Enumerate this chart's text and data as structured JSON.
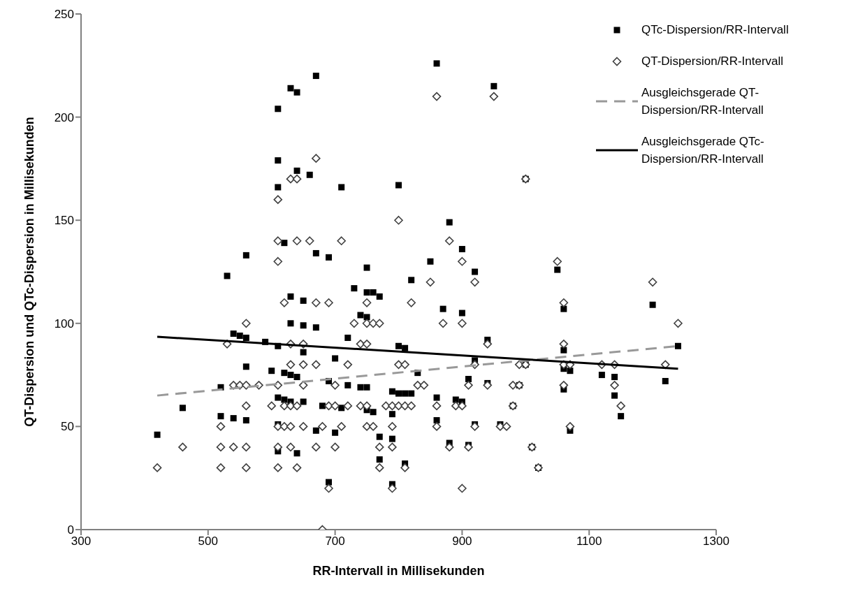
{
  "chart_data": {
    "type": "scatter",
    "xlabel": "RR-Intervall in Millisekunden",
    "ylabel": "QT-Dispersion und QTc-Dispersion in Millisekunden",
    "xlim": [
      300,
      1300
    ],
    "xticks": [
      300,
      500,
      700,
      900,
      1100,
      1300
    ],
    "ylim": [
      0,
      250
    ],
    "yticks": [
      0,
      50,
      100,
      150,
      200,
      250
    ],
    "grid": false,
    "legend": "top right",
    "series": [
      {
        "name": "QTc-Dispersion/RR-Intervall",
        "type": "scatter",
        "marker": "square",
        "color": "#000000",
        "x": [
          420,
          460,
          520,
          520,
          530,
          540,
          540,
          550,
          560,
          560,
          560,
          560,
          590,
          600,
          610,
          610,
          610,
          610,
          610,
          610,
          610,
          620,
          620,
          620,
          630,
          630,
          630,
          630,
          630,
          640,
          640,
          640,
          640,
          650,
          650,
          650,
          650,
          660,
          670,
          670,
          670,
          670,
          680,
          690,
          690,
          690,
          700,
          700,
          710,
          710,
          720,
          720,
          730,
          740,
          740,
          750,
          750,
          750,
          750,
          750,
          760,
          760,
          770,
          770,
          770,
          790,
          790,
          790,
          790,
          800,
          800,
          800,
          810,
          810,
          810,
          820,
          820,
          830,
          850,
          860,
          860,
          860,
          870,
          880,
          880,
          890,
          900,
          900,
          900,
          910,
          910,
          920,
          920,
          920,
          940,
          940,
          950,
          960,
          980,
          990,
          1000,
          1000,
          1010,
          1020,
          1050,
          1060,
          1060,
          1060,
          1060,
          1070,
          1070,
          1120,
          1140,
          1140,
          1150,
          1200,
          1220,
          1240
        ],
        "values": [
          46,
          59,
          69,
          55,
          123,
          95,
          54,
          94,
          93,
          133,
          79,
          53,
          91,
          77,
          204,
          179,
          166,
          89,
          64,
          51,
          38,
          139,
          76,
          63,
          214,
          113,
          100,
          75,
          62,
          212,
          174,
          74,
          37,
          111,
          99,
          86,
          62,
          172,
          220,
          134,
          98,
          48,
          60,
          132,
          72,
          23,
          83,
          47,
          166,
          59,
          93,
          70,
          117,
          104,
          69,
          127,
          115,
          103,
          69,
          58,
          115,
          57,
          113,
          45,
          34,
          67,
          56,
          44,
          22,
          167,
          89,
          66,
          88,
          66,
          32,
          121,
          66,
          76,
          130,
          226,
          64,
          53,
          107,
          149,
          42,
          63,
          136,
          105,
          62,
          73,
          41,
          125,
          82,
          51,
          92,
          71,
          215,
          51,
          60,
          70,
          170,
          80,
          40,
          30,
          126,
          107,
          87,
          78,
          68,
          77,
          48,
          75,
          74,
          65,
          55,
          109,
          72,
          89
        ]
      },
      {
        "name": "QT-Dispersion/RR-Intervall",
        "type": "scatter",
        "marker": "diamond",
        "color": "#404040",
        "x": [
          420,
          460,
          520,
          520,
          520,
          530,
          540,
          540,
          550,
          560,
          560,
          560,
          560,
          560,
          580,
          600,
          610,
          610,
          610,
          610,
          610,
          610,
          610,
          620,
          620,
          620,
          630,
          630,
          630,
          630,
          630,
          630,
          640,
          640,
          640,
          640,
          650,
          650,
          650,
          650,
          660,
          670,
          670,
          670,
          670,
          680,
          680,
          690,
          690,
          690,
          700,
          700,
          700,
          710,
          710,
          720,
          720,
          730,
          740,
          740,
          750,
          750,
          750,
          750,
          750,
          760,
          760,
          770,
          770,
          770,
          780,
          790,
          790,
          790,
          790,
          800,
          800,
          800,
          810,
          810,
          810,
          820,
          820,
          830,
          840,
          850,
          860,
          860,
          860,
          870,
          880,
          880,
          890,
          900,
          900,
          900,
          900,
          910,
          910,
          920,
          920,
          920,
          940,
          940,
          950,
          960,
          970,
          980,
          980,
          990,
          990,
          1000,
          1000,
          1010,
          1020,
          1050,
          1060,
          1060,
          1060,
          1060,
          1070,
          1070,
          1120,
          1140,
          1140,
          1150,
          1200,
          1220,
          1240
        ],
        "values": [
          30,
          40,
          50,
          40,
          30,
          90,
          70,
          40,
          70,
          100,
          70,
          60,
          40,
          30,
          70,
          60,
          160,
          140,
          130,
          70,
          50,
          40,
          30,
          110,
          60,
          50,
          170,
          90,
          80,
          60,
          50,
          40,
          170,
          140,
          60,
          30,
          90,
          80,
          70,
          50,
          140,
          180,
          110,
          80,
          40,
          50,
          0,
          110,
          60,
          20,
          70,
          60,
          40,
          140,
          50,
          80,
          60,
          100,
          90,
          60,
          110,
          100,
          90,
          60,
          50,
          100,
          50,
          100,
          40,
          30,
          60,
          60,
          50,
          40,
          20,
          150,
          80,
          60,
          80,
          60,
          30,
          110,
          60,
          70,
          70,
          120,
          210,
          60,
          50,
          100,
          140,
          40,
          60,
          130,
          100,
          60,
          20,
          70,
          40,
          120,
          80,
          50,
          90,
          70,
          210,
          50,
          50,
          70,
          60,
          70,
          80,
          170,
          80,
          40,
          30,
          130,
          110,
          90,
          80,
          70,
          80,
          50,
          80,
          80,
          70,
          60,
          120,
          80,
          100
        ]
      },
      {
        "name": "Ausgleichsgerade QT-Dispersion/RR-Intervall",
        "type": "line",
        "line_style": "dashed",
        "marker": "none",
        "color": "#999999",
        "x": [
          420,
          1240
        ],
        "values": [
          65,
          89
        ]
      },
      {
        "name": "Ausgleichsgerade QTc-Dispersion/RR-Intervall",
        "type": "line",
        "line_style": "solid",
        "marker": "none",
        "color": "#000000",
        "x": [
          420,
          1240
        ],
        "values": [
          93.5,
          78
        ]
      }
    ]
  }
}
